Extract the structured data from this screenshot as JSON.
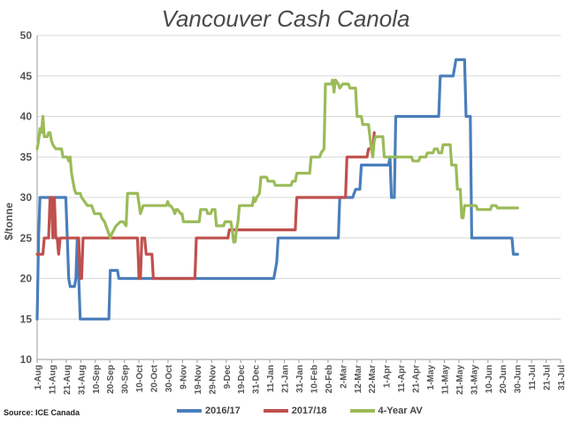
{
  "source": "Source: ICE Canada",
  "chart_data": {
    "type": "line",
    "title": "Vancouver Cash Canola",
    "xlabel": "",
    "ylabel": "$/tonne",
    "ylim": [
      10,
      50
    ],
    "yticks": [
      10,
      15,
      20,
      25,
      30,
      35,
      40,
      45,
      50
    ],
    "grid": true,
    "legend_position": "bottom",
    "xticks": [
      "1-Aug",
      "11-Aug",
      "21-Aug",
      "31-Aug",
      "10-Sep",
      "20-Sep",
      "30-Sep",
      "10-Oct",
      "20-Oct",
      "30-Oct",
      "9-Nov",
      "19-Nov",
      "29-Nov",
      "9-Dec",
      "19-Dec",
      "31-Dec",
      "11-Jan",
      "21-Jan",
      "31-Jan",
      "10-Feb",
      "20-Feb",
      "2-Mar",
      "12-Mar",
      "22-Mar",
      "1-Apr",
      "11-Apr",
      "21-Apr",
      "1-May",
      "11-May",
      "21-May",
      "31-May",
      "10-Jun",
      "20-Jun",
      "30-Jun",
      "11-Jul",
      "21-Jul",
      "31-Jul"
    ],
    "series": [
      {
        "name": "2016/17",
        "color": "#4A7EBB",
        "points": [
          [
            0,
            15
          ],
          [
            1,
            25
          ],
          [
            2,
            30
          ],
          [
            20,
            30
          ],
          [
            21,
            25
          ],
          [
            22,
            20
          ],
          [
            23,
            19
          ],
          [
            24,
            19
          ],
          [
            25,
            19
          ],
          [
            26,
            19
          ],
          [
            27,
            20
          ],
          [
            28,
            25
          ],
          [
            30,
            15
          ],
          [
            50,
            15
          ],
          [
            51,
            21
          ],
          [
            56,
            21
          ],
          [
            57,
            20
          ],
          [
            70,
            20
          ],
          [
            71,
            20
          ],
          [
            90,
            20
          ],
          [
            110,
            20
          ],
          [
            130,
            20
          ],
          [
            140,
            20
          ],
          [
            150,
            20
          ],
          [
            165,
            20
          ],
          [
            167,
            22
          ],
          [
            168,
            25
          ],
          [
            178,
            25
          ],
          [
            182,
            25
          ],
          [
            200,
            25
          ],
          [
            210,
            25
          ],
          [
            211,
            30
          ],
          [
            220,
            30
          ],
          [
            222,
            31
          ],
          [
            225,
            31
          ],
          [
            226,
            34
          ],
          [
            245,
            34
          ],
          [
            246,
            35
          ],
          [
            247,
            30
          ],
          [
            249,
            30
          ],
          [
            250,
            40
          ],
          [
            252,
            40
          ],
          [
            280,
            40
          ],
          [
            281,
            45
          ],
          [
            290,
            45
          ],
          [
            292,
            47
          ],
          [
            298,
            47
          ],
          [
            299,
            40
          ],
          [
            302,
            40
          ],
          [
            303,
            25
          ],
          [
            320,
            25
          ],
          [
            331,
            25
          ],
          [
            332,
            23
          ],
          [
            335,
            23
          ]
        ]
      },
      {
        "name": "2017/18",
        "color": "#C0504D",
        "points": [
          [
            0,
            23
          ],
          [
            4,
            23
          ],
          [
            5,
            25
          ],
          [
            8,
            25
          ],
          [
            9,
            30
          ],
          [
            10,
            30
          ],
          [
            11,
            25
          ],
          [
            12,
            30
          ],
          [
            13,
            25
          ],
          [
            14,
            25
          ],
          [
            15,
            23
          ],
          [
            16,
            25
          ],
          [
            29,
            25
          ],
          [
            30,
            20
          ],
          [
            31,
            20
          ],
          [
            32,
            25
          ],
          [
            70,
            25
          ],
          [
            71,
            20
          ],
          [
            72,
            20
          ],
          [
            73,
            25
          ],
          [
            75,
            25
          ],
          [
            76,
            23
          ],
          [
            80,
            23
          ],
          [
            81,
            20
          ],
          [
            110,
            20
          ],
          [
            111,
            25
          ],
          [
            133,
            25
          ],
          [
            134,
            26
          ],
          [
            180,
            26
          ],
          [
            181,
            30
          ],
          [
            215,
            30
          ],
          [
            216,
            35
          ],
          [
            230,
            35
          ],
          [
            231,
            36
          ],
          [
            234,
            36
          ],
          [
            235,
            38
          ]
        ]
      },
      {
        "name": "4-Year AV",
        "color": "#9BBB59",
        "points": [
          [
            0,
            36
          ],
          [
            1,
            37
          ],
          [
            2,
            38.5
          ],
          [
            3,
            38
          ],
          [
            4,
            40
          ],
          [
            5,
            37.5
          ],
          [
            7,
            37.5
          ],
          [
            8,
            38
          ],
          [
            9,
            38
          ],
          [
            10,
            37
          ],
          [
            11,
            36.5
          ],
          [
            13,
            36
          ],
          [
            17,
            36
          ],
          [
            18,
            35
          ],
          [
            21,
            35
          ],
          [
            22,
            34.5
          ],
          [
            23,
            35
          ],
          [
            24,
            33
          ],
          [
            25,
            32
          ],
          [
            26,
            31
          ],
          [
            27,
            30.5
          ],
          [
            30,
            30.5
          ],
          [
            31,
            30
          ],
          [
            35,
            29
          ],
          [
            38,
            29
          ],
          [
            40,
            28
          ],
          [
            44,
            28
          ],
          [
            45,
            27.5
          ],
          [
            47,
            27
          ],
          [
            49,
            26
          ],
          [
            51,
            25
          ],
          [
            52,
            25.5
          ],
          [
            55,
            26.5
          ],
          [
            58,
            27
          ],
          [
            60,
            27
          ],
          [
            62,
            26.5
          ],
          [
            63,
            30.5
          ],
          [
            70,
            30.5
          ],
          [
            72,
            28
          ],
          [
            74,
            29
          ],
          [
            78,
            29
          ],
          [
            90,
            29
          ],
          [
            91,
            29.5
          ],
          [
            92,
            29
          ],
          [
            93,
            29
          ],
          [
            95,
            28.5
          ],
          [
            96,
            28
          ],
          [
            97,
            28.5
          ],
          [
            98,
            28.5
          ],
          [
            100,
            28
          ],
          [
            101,
            28
          ],
          [
            102,
            27
          ],
          [
            113,
            27
          ],
          [
            114,
            28.5
          ],
          [
            118,
            28.5
          ],
          [
            119,
            28
          ],
          [
            121,
            28
          ],
          [
            122,
            28.5
          ],
          [
            124,
            28.5
          ],
          [
            125,
            26.5
          ],
          [
            130,
            26.5
          ],
          [
            131,
            27
          ],
          [
            135,
            27
          ],
          [
            136,
            26
          ],
          [
            137,
            24.5
          ],
          [
            138,
            24.5
          ],
          [
            139,
            26
          ],
          [
            140,
            27
          ],
          [
            141,
            29
          ],
          [
            150,
            29
          ],
          [
            151,
            30
          ],
          [
            152,
            29.5
          ],
          [
            153,
            30
          ],
          [
            155,
            30.5
          ],
          [
            156,
            32.5
          ],
          [
            160,
            32.5
          ],
          [
            161,
            32
          ],
          [
            165,
            32
          ],
          [
            166,
            31.5
          ],
          [
            177,
            31.5
          ],
          [
            178,
            32
          ],
          [
            180,
            32
          ],
          [
            181,
            33
          ],
          [
            190,
            33
          ],
          [
            191,
            35
          ],
          [
            197,
            35
          ],
          [
            198,
            35.5
          ],
          [
            200,
            36
          ],
          [
            201,
            44
          ],
          [
            205,
            44
          ],
          [
            206,
            44.5
          ],
          [
            207,
            43
          ],
          [
            208,
            44.5
          ],
          [
            210,
            44
          ],
          [
            211,
            43.5
          ],
          [
            213,
            44
          ],
          [
            217,
            44
          ],
          [
            218,
            43.5
          ],
          [
            222,
            43.5
          ],
          [
            223,
            40
          ],
          [
            226,
            40
          ],
          [
            227,
            39
          ],
          [
            231,
            39
          ],
          [
            232,
            37.5
          ],
          [
            233,
            36
          ],
          [
            234,
            35
          ],
          [
            235,
            37
          ],
          [
            236,
            37.5
          ],
          [
            241,
            37.5
          ],
          [
            242,
            35
          ],
          [
            261,
            35
          ],
          [
            262,
            34.5
          ],
          [
            266,
            34.5
          ],
          [
            267,
            35
          ],
          [
            271,
            35
          ],
          [
            272,
            35.5
          ],
          [
            276,
            35.5
          ],
          [
            277,
            36
          ],
          [
            279,
            36
          ],
          [
            280,
            35.5
          ],
          [
            282,
            35.5
          ],
          [
            283,
            36.5
          ],
          [
            288,
            36.5
          ],
          [
            289,
            34
          ],
          [
            292,
            34
          ],
          [
            293,
            31
          ],
          [
            295,
            31
          ],
          [
            296,
            27.5
          ],
          [
            297,
            27.5
          ],
          [
            298,
            29
          ],
          [
            306,
            29
          ],
          [
            307,
            28.5
          ],
          [
            316,
            28.5
          ],
          [
            317,
            29
          ],
          [
            320,
            29
          ],
          [
            321,
            28.7
          ],
          [
            335,
            28.7
          ]
        ]
      }
    ]
  }
}
